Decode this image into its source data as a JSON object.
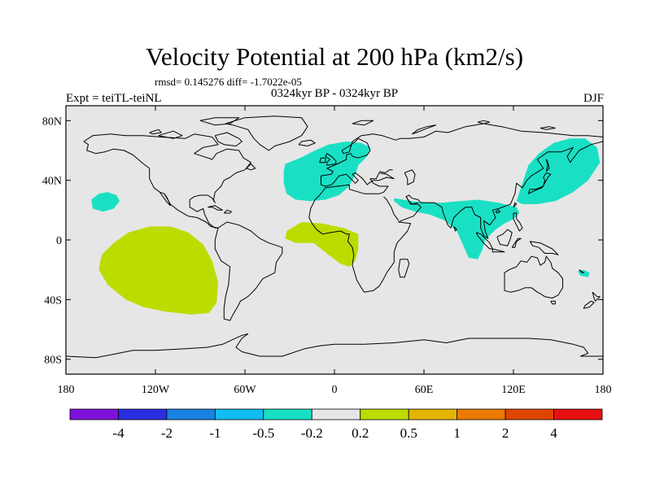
{
  "title": "Velocity Potential at 200 hPa (km2/s)",
  "stats_line": "rmsd= 0.145276 diff= -1.7022e-05",
  "left_label": "Expt = teiTL-teiNL",
  "center_label": "0324kyr BP - 0324kyr BP",
  "right_label": "DJF",
  "chart_data": {
    "type": "filled-contour-map",
    "projection": "cylindrical-equidistant",
    "variable": "Velocity Potential at 200 hPa",
    "units": "km2/s",
    "season": "DJF",
    "rmsd": 0.145276,
    "diff": -1.7022e-05,
    "x_range": [
      -180,
      180
    ],
    "y_range": [
      -90,
      90
    ],
    "x_ticks": [
      {
        "value": -180,
        "label": "180"
      },
      {
        "value": -120,
        "label": "120W"
      },
      {
        "value": -60,
        "label": "60W"
      },
      {
        "value": 0,
        "label": "0"
      },
      {
        "value": 60,
        "label": "60E"
      },
      {
        "value": 120,
        "label": "120E"
      },
      {
        "value": 180,
        "label": "180"
      }
    ],
    "y_ticks": [
      {
        "value": 80,
        "label": "80N"
      },
      {
        "value": 40,
        "label": "40N"
      },
      {
        "value": 0,
        "label": "0"
      },
      {
        "value": -40,
        "label": "40S"
      },
      {
        "value": -80,
        "label": "80S"
      }
    ],
    "background_color": "#e6e6e6",
    "regions": [
      {
        "name": "north-atlantic-europe-negative",
        "color": "#19e0c4",
        "outline": [
          [
            -33,
            51
          ],
          [
            -23,
            55
          ],
          [
            -13,
            60
          ],
          [
            -4,
            64
          ],
          [
            8,
            66
          ],
          [
            18,
            65
          ],
          [
            24,
            62
          ],
          [
            22,
            56
          ],
          [
            16,
            50
          ],
          [
            14,
            44
          ],
          [
            10,
            36
          ],
          [
            3,
            30
          ],
          [
            -6,
            27
          ],
          [
            -16,
            26
          ],
          [
            -26,
            27
          ],
          [
            -32,
            31
          ],
          [
            -34,
            38
          ],
          [
            -34,
            46
          ]
        ]
      },
      {
        "name": "north-pacific-small-negative",
        "color": "#19e0c4",
        "outline": [
          [
            -158,
            31
          ],
          [
            -152,
            32
          ],
          [
            -146,
            30
          ],
          [
            -144,
            26
          ],
          [
            -148,
            21
          ],
          [
            -155,
            19
          ],
          [
            -162,
            21
          ],
          [
            -163,
            27
          ]
        ]
      },
      {
        "name": "asia-indian-ocean-negative",
        "color": "#19e0c4",
        "outline": [
          [
            40,
            28
          ],
          [
            52,
            26
          ],
          [
            62,
            25
          ],
          [
            72,
            25
          ],
          [
            84,
            26
          ],
          [
            96,
            27
          ],
          [
            110,
            25
          ],
          [
            122,
            22
          ],
          [
            124,
            18
          ],
          [
            120,
            14
          ],
          [
            114,
            11
          ],
          [
            108,
            7
          ],
          [
            101,
            0
          ],
          [
            99,
            -7
          ],
          [
            96,
            -13
          ],
          [
            90,
            -12
          ],
          [
            86,
            -3
          ],
          [
            82,
            6
          ],
          [
            74,
            13
          ],
          [
            64,
            17
          ],
          [
            54,
            19
          ],
          [
            45,
            22
          ],
          [
            40,
            26
          ]
        ]
      },
      {
        "name": "west-pacific-japan-negative",
        "color": "#19e0c4",
        "outline": [
          [
            122,
            26
          ],
          [
            126,
            38
          ],
          [
            130,
            50
          ],
          [
            137,
            58
          ],
          [
            147,
            65
          ],
          [
            158,
            68
          ],
          [
            168,
            68
          ],
          [
            176,
            62
          ],
          [
            178,
            52
          ],
          [
            170,
            40
          ],
          [
            160,
            32
          ],
          [
            148,
            26
          ],
          [
            136,
            24
          ],
          [
            126,
            24
          ]
        ]
      },
      {
        "name": "southwest-pacific-small-negative",
        "color": "#19e0c4",
        "outline": [
          [
            163,
            -21
          ],
          [
            167,
            -20
          ],
          [
            171,
            -22
          ],
          [
            170,
            -25
          ],
          [
            165,
            -24
          ]
        ]
      },
      {
        "name": "east-pacific-positive",
        "color": "#bcdc00",
        "outline": [
          [
            -148,
            -2
          ],
          [
            -138,
            5
          ],
          [
            -124,
            9
          ],
          [
            -110,
            9
          ],
          [
            -98,
            5
          ],
          [
            -88,
            -3
          ],
          [
            -82,
            -14
          ],
          [
            -78,
            -28
          ],
          [
            -79,
            -42
          ],
          [
            -84,
            -49
          ],
          [
            -96,
            -50
          ],
          [
            -114,
            -48
          ],
          [
            -128,
            -45
          ],
          [
            -140,
            -40
          ],
          [
            -152,
            -30
          ],
          [
            -158,
            -20
          ],
          [
            -156,
            -10
          ]
        ]
      },
      {
        "name": "tropical-atlantic-positive",
        "color": "#bcdc00",
        "outline": [
          [
            -32,
            6
          ],
          [
            -22,
            12
          ],
          [
            -8,
            11
          ],
          [
            6,
            8
          ],
          [
            16,
            4
          ],
          [
            16,
            -6
          ],
          [
            14,
            -14
          ],
          [
            10,
            -18
          ],
          [
            4,
            -16
          ],
          [
            -4,
            -10
          ],
          [
            -14,
            -2
          ],
          [
            -26,
            -2
          ],
          [
            -33,
            1
          ]
        ]
      }
    ],
    "colorbar": {
      "colors": [
        "#7e12dc",
        "#2a2ee0",
        "#1882e2",
        "#10bcf0",
        "#19e0c4",
        "#e6e6e6",
        "#bcdc00",
        "#e4b400",
        "#ec7a00",
        "#e04500",
        "#e61010"
      ],
      "labels": [
        "-4",
        "-2",
        "-1",
        "-0.5",
        "-0.2",
        "0.2",
        "0.5",
        "1",
        "2",
        "4"
      ]
    }
  }
}
